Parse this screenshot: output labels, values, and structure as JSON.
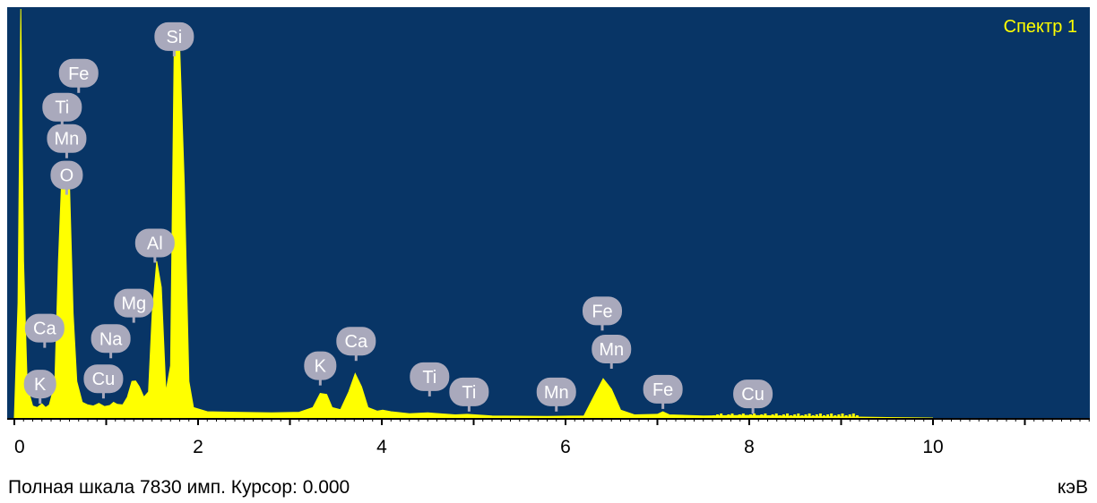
{
  "chart_data": {
    "type": "line",
    "title": "Спектр 1",
    "xlabel": "кэВ",
    "xlim": [
      0,
      11.7
    ],
    "ylim": [
      0,
      7830
    ],
    "x_ticks": [
      0,
      2,
      4,
      6,
      8,
      10
    ],
    "full_scale_counts": 7830,
    "footer": "Полная шкала 7830 имп. Курсор: 0.000",
    "unit_label": "кэВ",
    "colors": {
      "plot_background": "#083566",
      "spectrum_fill": "#ffff00",
      "label_bubble": "#a9a9bc",
      "title": "#ffff00"
    },
    "series": [
      {
        "values": [
          [
            0.0,
            0
          ],
          [
            0.04,
            2200
          ],
          [
            0.07,
            7830
          ],
          [
            0.1,
            3000
          ],
          [
            0.14,
            600
          ],
          [
            0.2,
            230
          ],
          [
            0.25,
            200
          ],
          [
            0.3,
            270
          ],
          [
            0.34,
            200
          ],
          [
            0.38,
            250
          ],
          [
            0.44,
            650
          ],
          [
            0.48,
            3000
          ],
          [
            0.52,
            4800
          ],
          [
            0.56,
            4900
          ],
          [
            0.6,
            4500
          ],
          [
            0.64,
            2000
          ],
          [
            0.68,
            700
          ],
          [
            0.74,
            300
          ],
          [
            0.8,
            250
          ],
          [
            0.86,
            230
          ],
          [
            0.92,
            280
          ],
          [
            0.98,
            220
          ],
          [
            1.04,
            240
          ],
          [
            1.08,
            300
          ],
          [
            1.12,
            260
          ],
          [
            1.18,
            250
          ],
          [
            1.23,
            400
          ],
          [
            1.28,
            700
          ],
          [
            1.32,
            710
          ],
          [
            1.36,
            600
          ],
          [
            1.41,
            400
          ],
          [
            1.46,
            500
          ],
          [
            1.5,
            2000
          ],
          [
            1.55,
            3000
          ],
          [
            1.6,
            2500
          ],
          [
            1.65,
            500
          ],
          [
            1.7,
            1000
          ],
          [
            1.74,
            7000
          ],
          [
            1.8,
            7100
          ],
          [
            1.85,
            4500
          ],
          [
            1.9,
            700
          ],
          [
            1.95,
            200
          ],
          [
            2.1,
            120
          ],
          [
            2.4,
            110
          ],
          [
            2.8,
            100
          ],
          [
            3.1,
            110
          ],
          [
            3.25,
            200
          ],
          [
            3.33,
            470
          ],
          [
            3.4,
            450
          ],
          [
            3.46,
            200
          ],
          [
            3.55,
            160
          ],
          [
            3.64,
            500
          ],
          [
            3.71,
            850
          ],
          [
            3.78,
            600
          ],
          [
            3.85,
            200
          ],
          [
            3.95,
            130
          ],
          [
            4.01,
            150
          ],
          [
            4.1,
            120
          ],
          [
            4.3,
            80
          ],
          [
            4.5,
            100
          ],
          [
            4.56,
            90
          ],
          [
            4.8,
            60
          ],
          [
            4.93,
            70
          ],
          [
            5.2,
            40
          ],
          [
            5.8,
            30
          ],
          [
            6.2,
            40
          ],
          [
            6.32,
            450
          ],
          [
            6.41,
            750
          ],
          [
            6.5,
            550
          ],
          [
            6.6,
            150
          ],
          [
            6.75,
            60
          ],
          [
            7.0,
            70
          ],
          [
            7.06,
            120
          ],
          [
            7.13,
            60
          ],
          [
            7.5,
            40
          ],
          [
            8.0,
            50
          ],
          [
            8.5,
            30
          ],
          [
            9.0,
            20
          ],
          [
            9.5,
            8
          ],
          [
            10.0,
            0
          ]
        ]
      }
    ],
    "element_labels": [
      {
        "text": "Si",
        "x": 1.74,
        "y": 7300
      },
      {
        "text": "Fe",
        "x": 0.7,
        "y": 6600
      },
      {
        "text": "Ti",
        "x": 0.52,
        "y": 5950
      },
      {
        "text": "Mn",
        "x": 0.57,
        "y": 5350
      },
      {
        "text": "O",
        "x": 0.57,
        "y": 4650
      },
      {
        "text": "Al",
        "x": 1.53,
        "y": 3350
      },
      {
        "text": "Mg",
        "x": 1.3,
        "y": 2200
      },
      {
        "text": "Ca",
        "x": 0.33,
        "y": 1720
      },
      {
        "text": "Na",
        "x": 1.05,
        "y": 1520
      },
      {
        "text": "K",
        "x": 0.28,
        "y": 650
      },
      {
        "text": "Cu",
        "x": 0.97,
        "y": 750
      },
      {
        "text": "K",
        "x": 3.33,
        "y": 1000
      },
      {
        "text": "Ca",
        "x": 3.72,
        "y": 1470
      },
      {
        "text": "Ti",
        "x": 4.52,
        "y": 790
      },
      {
        "text": "Ti",
        "x": 4.95,
        "y": 500
      },
      {
        "text": "Mn",
        "x": 5.9,
        "y": 500
      },
      {
        "text": "Fe",
        "x": 6.4,
        "y": 2050
      },
      {
        "text": "Mn",
        "x": 6.5,
        "y": 1320
      },
      {
        "text": "Fe",
        "x": 7.06,
        "y": 550
      },
      {
        "text": "Cu",
        "x": 8.04,
        "y": 460
      }
    ]
  }
}
